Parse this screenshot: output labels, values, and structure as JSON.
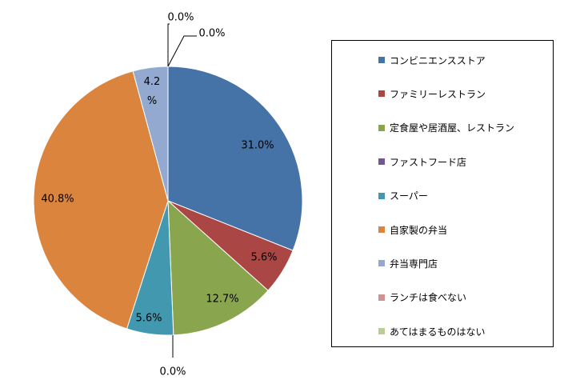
{
  "chart_data": {
    "type": "pie",
    "categories": [
      "コンビニエンスストア",
      "ファミリーレストラン",
      "定食屋や居酒屋、レストラン",
      "ファストフード店",
      "スーパー",
      "自家製の弁当",
      "弁当専門店",
      "ランチは食べない",
      "あてはまるものはない"
    ],
    "values": [
      31.0,
      5.6,
      12.7,
      0.0,
      5.6,
      40.8,
      4.2,
      0.0,
      0.0
    ],
    "data_labels": [
      "31.0%",
      "5.6%",
      "12.7%",
      "0.0%",
      "5.6%",
      "40.8%",
      "4.2%",
      "0.0%",
      "0.0%"
    ],
    "colors": [
      "#4572A7",
      "#AA4643",
      "#89A54E",
      "#71588F",
      "#4198AF",
      "#DB843D",
      "#93A9CF",
      "#D19392",
      "#B9CD96"
    ],
    "legend_position": "right"
  }
}
